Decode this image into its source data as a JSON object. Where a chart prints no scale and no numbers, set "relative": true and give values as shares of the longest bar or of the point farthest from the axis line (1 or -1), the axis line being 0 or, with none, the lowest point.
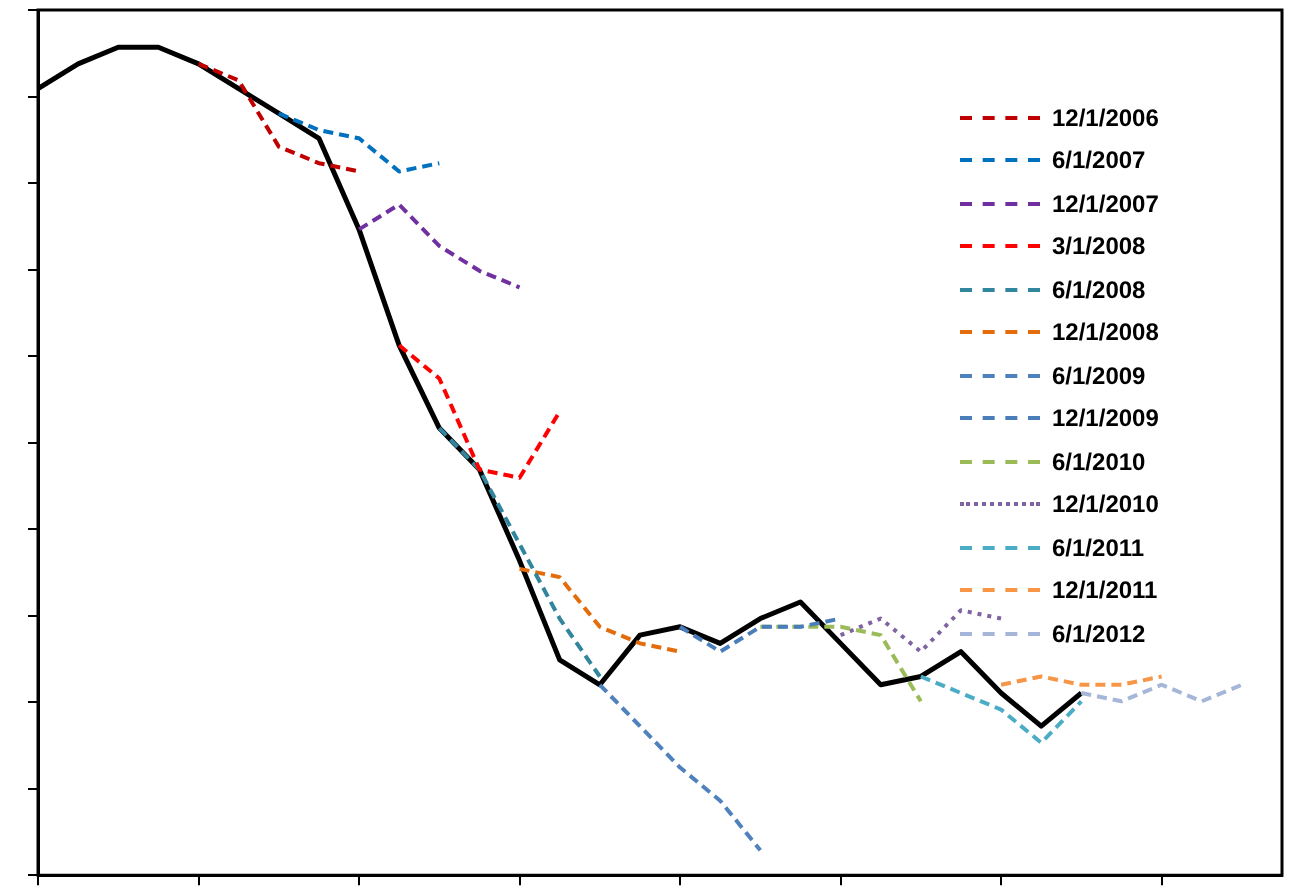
{
  "chart_data": {
    "type": "line",
    "relative": true,
    "legend": "top right",
    "marker": "none",
    "grid": false,
    "categories": [
      null,
      null,
      null,
      null,
      null,
      null,
      null,
      null,
      null,
      null,
      null,
      null,
      null,
      null,
      null,
      null,
      null,
      null,
      null,
      null,
      null,
      null,
      null,
      null,
      null,
      null,
      null,
      null,
      null,
      null,
      null,
      null
    ],
    "series": [
      {
        "color": "#000000",
        "line_style": "solid",
        "values": [
          0.95,
          0.98,
          1.0,
          1.0,
          0.98,
          0.95,
          0.92,
          0.89,
          0.78,
          0.64,
          0.54,
          0.49,
          0.38,
          0.26,
          0.23,
          0.29,
          0.3,
          0.28,
          0.31,
          0.33,
          0.28,
          0.23,
          0.24,
          0.27,
          0.22,
          0.18,
          0.22,
          null,
          null,
          null,
          null,
          null
        ]
      },
      {
        "name": "12/1/2006",
        "color": "#c00000",
        "line_style": "dashed",
        "values": [
          null,
          null,
          null,
          null,
          0.98,
          0.96,
          0.88,
          0.86,
          0.85,
          null,
          null,
          null,
          null,
          null,
          null,
          null,
          null,
          null,
          null,
          null,
          null,
          null,
          null,
          null,
          null,
          null,
          null,
          null,
          null,
          null,
          null,
          null
        ]
      },
      {
        "name": "6/1/2007",
        "color": "#0070c0",
        "line_style": "dashed",
        "values": [
          null,
          null,
          null,
          null,
          null,
          null,
          0.92,
          0.9,
          0.89,
          0.85,
          0.86,
          null,
          null,
          null,
          null,
          null,
          null,
          null,
          null,
          null,
          null,
          null,
          null,
          null,
          null,
          null,
          null,
          null,
          null,
          null,
          null,
          null
        ]
      },
      {
        "name": "12/1/2007",
        "color": "#7030a0",
        "line_style": "dashed",
        "values": [
          null,
          null,
          null,
          null,
          null,
          null,
          null,
          null,
          0.78,
          0.81,
          0.76,
          0.73,
          0.71,
          null,
          null,
          null,
          null,
          null,
          null,
          null,
          null,
          null,
          null,
          null,
          null,
          null,
          null,
          null,
          null,
          null,
          null,
          null
        ]
      },
      {
        "name": "3/1/2008",
        "color": "#ff0000",
        "line_style": "dashed",
        "values": [
          null,
          null,
          null,
          null,
          null,
          null,
          null,
          null,
          null,
          0.64,
          0.6,
          0.49,
          0.48,
          0.56,
          null,
          null,
          null,
          null,
          null,
          null,
          null,
          null,
          null,
          null,
          null,
          null,
          null,
          null,
          null,
          null,
          null,
          null
        ]
      },
      {
        "name": "6/1/2008",
        "color": "#31859c",
        "line_style": "dashed",
        "values": [
          null,
          null,
          null,
          null,
          null,
          null,
          null,
          null,
          null,
          null,
          0.54,
          0.49,
          0.4,
          0.31,
          0.24,
          null,
          null,
          null,
          null,
          null,
          null,
          null,
          null,
          null,
          null,
          null,
          null,
          null,
          null,
          null,
          null,
          null
        ]
      },
      {
        "name": "12/1/2008",
        "color": "#e46c0a",
        "line_style": "dashed",
        "values": [
          null,
          null,
          null,
          null,
          null,
          null,
          null,
          null,
          null,
          null,
          null,
          null,
          0.37,
          0.36,
          0.3,
          0.28,
          0.27,
          null,
          null,
          null,
          null,
          null,
          null,
          null,
          null,
          null,
          null,
          null,
          null,
          null,
          null,
          null
        ]
      },
      {
        "name": "6/1/2009",
        "color": "#4f81bd",
        "line_style": "dashed",
        "values": [
          null,
          null,
          null,
          null,
          null,
          null,
          null,
          null,
          null,
          null,
          null,
          null,
          null,
          null,
          0.23,
          0.18,
          0.13,
          0.09,
          0.03,
          null,
          null,
          null,
          null,
          null,
          null,
          null,
          null,
          null,
          null,
          null,
          null,
          null
        ]
      },
      {
        "name": "12/1/2009",
        "color": "#4a7ebb",
        "line_style": "dashed",
        "values": [
          null,
          null,
          null,
          null,
          null,
          null,
          null,
          null,
          null,
          null,
          null,
          null,
          null,
          null,
          null,
          null,
          0.3,
          0.27,
          0.3,
          0.3,
          0.31,
          null,
          null,
          null,
          null,
          null,
          null,
          null,
          null,
          null,
          null,
          null
        ]
      },
      {
        "name": "6/1/2010",
        "color": "#9bbb59",
        "line_style": "dashed",
        "values": [
          null,
          null,
          null,
          null,
          null,
          null,
          null,
          null,
          null,
          null,
          null,
          null,
          null,
          null,
          null,
          null,
          null,
          null,
          0.3,
          0.3,
          0.3,
          0.29,
          0.21,
          null,
          null,
          null,
          null,
          null,
          null,
          null,
          null,
          null
        ]
      },
      {
        "name": "12/1/2010",
        "color": "#8064a2",
        "line_style": "dotted",
        "values": [
          null,
          null,
          null,
          null,
          null,
          null,
          null,
          null,
          null,
          null,
          null,
          null,
          null,
          null,
          null,
          null,
          null,
          null,
          null,
          null,
          0.29,
          0.31,
          0.27,
          0.32,
          0.31,
          null,
          null,
          null,
          null,
          null,
          null,
          null
        ]
      },
      {
        "name": "6/1/2011",
        "color": "#4bacc6",
        "line_style": "dashed",
        "values": [
          null,
          null,
          null,
          null,
          null,
          null,
          null,
          null,
          null,
          null,
          null,
          null,
          null,
          null,
          null,
          null,
          null,
          null,
          null,
          null,
          null,
          null,
          0.24,
          0.22,
          0.2,
          0.16,
          0.21,
          null,
          null,
          null,
          null,
          null
        ]
      },
      {
        "name": "12/1/2011",
        "color": "#f79646",
        "line_style": "dashed",
        "values": [
          null,
          null,
          null,
          null,
          null,
          null,
          null,
          null,
          null,
          null,
          null,
          null,
          null,
          null,
          null,
          null,
          null,
          null,
          null,
          null,
          null,
          null,
          null,
          null,
          0.23,
          0.24,
          0.23,
          0.23,
          0.24,
          null,
          null,
          null
        ]
      },
      {
        "name": "6/1/2012",
        "color": "#a5b6d9",
        "line_style": "dashed",
        "values": [
          null,
          null,
          null,
          null,
          null,
          null,
          null,
          null,
          null,
          null,
          null,
          null,
          null,
          null,
          null,
          null,
          null,
          null,
          null,
          null,
          null,
          null,
          null,
          null,
          null,
          null,
          0.22,
          0.21,
          0.23,
          0.21,
          0.23,
          null
        ]
      }
    ]
  }
}
